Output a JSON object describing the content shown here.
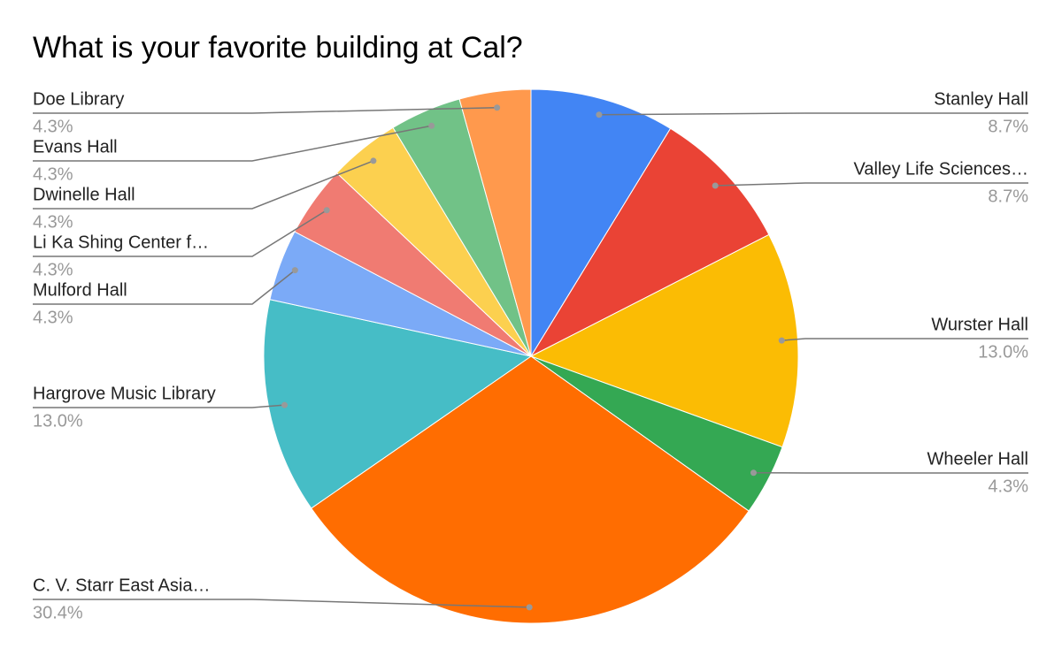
{
  "chart_data": {
    "type": "pie",
    "title": "What is your favorite building at Cal?",
    "categories": [
      "Stanley Hall",
      "Valley Life Sciences…",
      "Wurster Hall",
      "Wheeler Hall",
      "C. V. Starr East Asia…",
      "Hargrove Music Library",
      "Mulford Hall",
      "Li Ka Shing Center f…",
      "Dwinelle Hall",
      "Evans Hall",
      "Doe Library"
    ],
    "values": [
      8.7,
      8.7,
      13.0,
      4.3,
      30.4,
      13.0,
      4.3,
      4.3,
      4.3,
      4.3,
      4.3
    ],
    "value_labels": [
      "8.7%",
      "8.7%",
      "13.0%",
      "4.3%",
      "30.4%",
      "13.0%",
      "4.3%",
      "4.3%",
      "4.3%",
      "4.3%",
      "4.3%"
    ],
    "colors": [
      "#4285f4",
      "#ea4335",
      "#fbbc04",
      "#34a853",
      "#ff6d01",
      "#46bdc6",
      "#7baaf7",
      "#f07b72",
      "#fcd04f",
      "#71c287",
      "#ff994d"
    ]
  }
}
